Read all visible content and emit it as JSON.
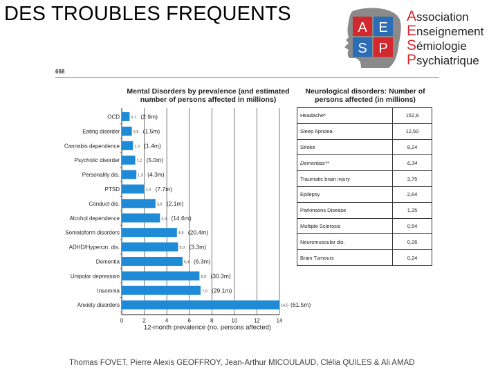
{
  "slide": {
    "title": "DES TROUBLES FREQUENTS",
    "footer": "Thomas FOVET, Pierre Alexis GEOFFROY, Jean-Arthur MICOULAUD, Clélia QUILES & Ali AMAD",
    "page_number": "668"
  },
  "logo": {
    "tiles": [
      "A",
      "E",
      "S",
      "P"
    ],
    "tile_colors": [
      "#d2282e",
      "#2d6db5",
      "#2d6db5",
      "#d2282e"
    ],
    "lines": [
      {
        "cap": "A",
        "rest": "ssociation"
      },
      {
        "cap": "E",
        "rest": "nseignement"
      },
      {
        "cap": "S",
        "rest": "émiologie"
      },
      {
        "cap": "P",
        "rest": "sychiatrique"
      }
    ]
  },
  "chart_data": {
    "type": "bar",
    "orientation": "horizontal",
    "title": "Mental Disorders by prevalence (and estimated number of persons affected in millions)",
    "xlabel": "12-month prevalence (no. persons affected)",
    "xlim": [
      0,
      14
    ],
    "xticks": [
      "0",
      "2",
      "4",
      "6",
      "8",
      "10",
      "12",
      "14"
    ],
    "bar_color": "#1f8ad6",
    "categories": [
      "OCD",
      "Eating disorder",
      "Cannabis dependence",
      "Psychotic disorder",
      "Personality dis.",
      "PTSD",
      "Conduct dis.",
      "Alcohol dependence",
      "Somatoform disorders",
      "ADHD/Hypercin. dis.",
      "Dementia",
      "Unipolar depression",
      "Insomnia",
      "Anxiety disorders"
    ],
    "values": [
      0.7,
      0.9,
      1.0,
      1.2,
      1.3,
      2.0,
      3.0,
      3.4,
      4.9,
      5.0,
      5.4,
      6.9,
      7.0,
      14.0
    ],
    "value_labels": [
      "0,7",
      "0,9",
      "1,0",
      "1,2",
      "1,3",
      "2,0",
      "3,0",
      "3,4",
      "4,9",
      "5,0",
      "5,4",
      "6,9",
      "7,0",
      "14,0"
    ],
    "persons_labels": [
      "(2.9m)",
      "(1.5m)",
      "(1.4m)",
      "(5.0m)",
      "(4.3m)",
      "(7.7m)",
      "(2.1m)",
      "(14.6m)",
      "(20.4m)",
      "(3.3m)",
      "(6.3m)",
      "(30.3m)",
      "(29.1m)",
      "(61.5m)"
    ]
  },
  "neuro": {
    "title": "Neurological disorders: Number of persons affected (in millions)",
    "rows": [
      {
        "name": "Headache*",
        "value": "152,8",
        "italic": false
      },
      {
        "name": "Sleep Apnoea",
        "value": "12,50",
        "italic": false
      },
      {
        "name": "Stroke",
        "value": "8,24",
        "italic": false
      },
      {
        "name": "Dementias**",
        "value": "6,34",
        "italic": true
      },
      {
        "name": "Traumatic brain injury",
        "value": "3,75",
        "italic": false
      },
      {
        "name": "Epilepsy",
        "value": "2,64",
        "italic": false
      },
      {
        "name": "Parkinsons Disease",
        "value": "1,25",
        "italic": false
      },
      {
        "name": "Multiple Sclerosis",
        "value": "0,54",
        "italic": false
      },
      {
        "name": "Neuromuscular dis.",
        "value": "0,26",
        "italic": false
      },
      {
        "name": "Brain Tumours",
        "value": "0,24",
        "italic": false
      }
    ]
  }
}
